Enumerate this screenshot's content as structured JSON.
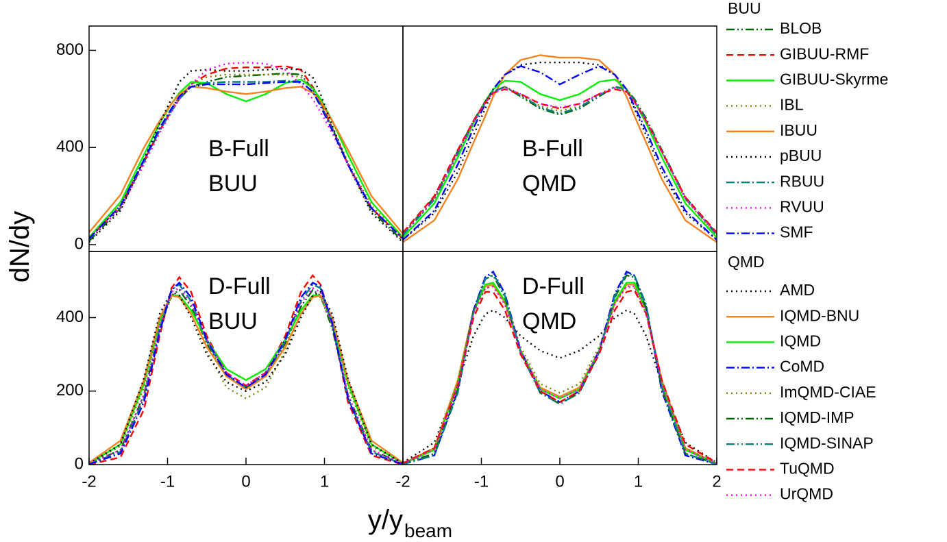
{
  "y_label": "dN/dy",
  "x_label": "y/y",
  "x_label_sub": "beam",
  "chart_data": [
    {
      "type": "line",
      "legend_title": "BUU",
      "label": [
        "B-Full",
        "BUU"
      ],
      "x": [
        -2,
        -1.6,
        -1.3,
        -1.1,
        -0.95,
        -0.85,
        -0.7,
        -0.5,
        -0.25,
        0,
        0.25,
        0.5,
        0.7,
        0.85,
        0.95,
        1.1,
        1.3,
        1.6,
        2
      ],
      "xlim": [
        -2,
        2
      ],
      "ylim": [
        -28,
        900
      ],
      "yticks": [
        0,
        400,
        800
      ],
      "series": [
        {
          "name": "BLOB",
          "color": "#006400",
          "dash": "dashdotdot",
          "values": [
            15,
            150,
            340,
            470,
            550,
            600,
            650,
            670,
            690,
            695,
            700,
            705,
            700,
            640,
            580,
            480,
            330,
            140,
            15
          ]
        },
        {
          "name": "GIBUU-RMF",
          "color": "#ff0000",
          "dash": "dashed",
          "values": [
            25,
            160,
            345,
            470,
            550,
            600,
            660,
            700,
            725,
            730,
            730,
            735,
            720,
            650,
            590,
            480,
            330,
            150,
            25
          ]
        },
        {
          "name": "GIBUU-Skyrme",
          "color": "#00ee00",
          "dash": "solid",
          "values": [
            30,
            175,
            370,
            500,
            580,
            625,
            670,
            665,
            620,
            590,
            620,
            665,
            680,
            645,
            600,
            510,
            370,
            175,
            30
          ]
        },
        {
          "name": "IBL",
          "color": "#808000",
          "dash": "dotted",
          "values": [
            30,
            165,
            350,
            480,
            560,
            610,
            660,
            690,
            700,
            700,
            700,
            700,
            690,
            640,
            580,
            480,
            340,
            160,
            30
          ]
        },
        {
          "name": "IBUU",
          "color": "#f58220",
          "dash": "solid",
          "values": [
            50,
            205,
            400,
            510,
            580,
            620,
            650,
            645,
            630,
            620,
            630,
            645,
            650,
            625,
            590,
            510,
            390,
            200,
            45
          ]
        },
        {
          "name": "pBUU",
          "color": "#000000",
          "dash": "dotted",
          "values": [
            10,
            140,
            350,
            500,
            600,
            670,
            715,
            720,
            715,
            715,
            720,
            725,
            720,
            690,
            620,
            490,
            330,
            130,
            10
          ]
        },
        {
          "name": "RBUU",
          "color": "#008080",
          "dash": "dashdot",
          "values": [
            25,
            160,
            345,
            470,
            550,
            600,
            650,
            665,
            670,
            670,
            670,
            675,
            670,
            630,
            575,
            475,
            330,
            150,
            25
          ]
        },
        {
          "name": "RVUU",
          "color": "#ff00ff",
          "dash": "dotted",
          "values": [
            25,
            150,
            330,
            460,
            545,
            600,
            660,
            720,
            745,
            750,
            745,
            720,
            660,
            600,
            545,
            460,
            330,
            150,
            25
          ]
        },
        {
          "name": "SMF",
          "color": "#0000ff",
          "dash": "dashdot",
          "values": [
            25,
            160,
            350,
            480,
            560,
            610,
            650,
            660,
            660,
            660,
            665,
            670,
            670,
            630,
            570,
            470,
            330,
            150,
            25
          ]
        }
      ]
    },
    {
      "type": "line",
      "legend_title": "QMD",
      "label": [
        "B-Full",
        "QMD"
      ],
      "x": [
        -2,
        -1.6,
        -1.3,
        -1.1,
        -0.95,
        -0.85,
        -0.7,
        -0.5,
        -0.25,
        0,
        0.25,
        0.5,
        0.7,
        0.85,
        0.95,
        1.1,
        1.3,
        1.6,
        2
      ],
      "xlim": [
        -2,
        2
      ],
      "ylim": [
        -28,
        900
      ],
      "series": [
        {
          "name": "AMD",
          "color": "#000000",
          "dash": "dotted",
          "values": [
            20,
            130,
            300,
            450,
            560,
            640,
            700,
            740,
            750,
            750,
            750,
            740,
            700,
            640,
            560,
            450,
            300,
            130,
            20
          ]
        },
        {
          "name": "IQMD-BNU",
          "color": "#f58220",
          "dash": "solid",
          "values": [
            10,
            100,
            270,
            420,
            530,
            610,
            700,
            760,
            780,
            770,
            770,
            760,
            700,
            610,
            530,
            420,
            270,
            100,
            10
          ]
        },
        {
          "name": "IQMD",
          "color": "#00ee00",
          "dash": "solid",
          "values": [
            30,
            170,
            360,
            500,
            590,
            640,
            675,
            670,
            620,
            595,
            620,
            670,
            680,
            640,
            590,
            500,
            360,
            170,
            30
          ]
        },
        {
          "name": "CoMD",
          "color": "#0000ff",
          "dash": "dashdot",
          "values": [
            20,
            140,
            330,
            480,
            580,
            640,
            700,
            735,
            710,
            660,
            700,
            735,
            700,
            640,
            570,
            470,
            320,
            140,
            20
          ]
        },
        {
          "name": "ImQMD-CIAE",
          "color": "#808000",
          "dash": "dotted",
          "values": [
            40,
            185,
            380,
            510,
            590,
            630,
            650,
            620,
            570,
            550,
            570,
            620,
            650,
            630,
            590,
            510,
            380,
            185,
            40
          ]
        },
        {
          "name": "IQMD-IMP",
          "color": "#006400",
          "dash": "dashdotdot",
          "values": [
            45,
            195,
            385,
            510,
            590,
            630,
            650,
            610,
            560,
            535,
            560,
            610,
            650,
            640,
            600,
            520,
            390,
            195,
            45
          ]
        },
        {
          "name": "IQMD-SINAP",
          "color": "#008080",
          "dash": "dashdotdot",
          "values": [
            40,
            185,
            375,
            505,
            585,
            630,
            650,
            615,
            565,
            540,
            565,
            615,
            650,
            640,
            595,
            515,
            385,
            190,
            40
          ]
        },
        {
          "name": "TuQMD",
          "color": "#ff0000",
          "dash": "dashed",
          "values": [
            50,
            200,
            390,
            510,
            585,
            625,
            640,
            620,
            580,
            560,
            580,
            620,
            640,
            630,
            590,
            510,
            385,
            195,
            50
          ]
        },
        {
          "name": "UrQMD",
          "color": "#ff00ff",
          "dash": "dotted",
          "values": [
            45,
            190,
            380,
            505,
            585,
            625,
            645,
            620,
            580,
            565,
            580,
            620,
            645,
            630,
            590,
            510,
            380,
            190,
            45
          ]
        }
      ]
    },
    {
      "type": "line",
      "label": [
        "D-Full",
        "BUU"
      ],
      "x": [
        -2,
        -1.6,
        -1.3,
        -1.1,
        -0.95,
        -0.85,
        -0.7,
        -0.5,
        -0.25,
        0,
        0.25,
        0.5,
        0.7,
        0.85,
        0.95,
        1.1,
        1.3,
        1.6,
        2
      ],
      "xlim": [
        -2,
        2
      ],
      "ylim": [
        0,
        580
      ],
      "xticks": [
        -2,
        -1,
        0,
        1
      ],
      "yticks": [
        0,
        200,
        400
      ],
      "series": [
        {
          "name": "BLOB",
          "color": "#006400",
          "dash": "dashdotdot",
          "values": [
            2,
            40,
            190,
            370,
            460,
            475,
            430,
            330,
            240,
            210,
            240,
            330,
            430,
            475,
            460,
            370,
            190,
            40,
            2
          ]
        },
        {
          "name": "GIBUU-RMF",
          "color": "#ff0000",
          "dash": "dashed",
          "values": [
            0,
            20,
            150,
            350,
            480,
            510,
            470,
            350,
            250,
            215,
            250,
            350,
            470,
            515,
            490,
            380,
            170,
            25,
            0
          ]
        },
        {
          "name": "GIBUU-Skyrme",
          "color": "#00ee00",
          "dash": "solid",
          "values": [
            3,
            55,
            220,
            390,
            460,
            460,
            420,
            340,
            260,
            230,
            260,
            340,
            420,
            460,
            460,
            390,
            220,
            55,
            3
          ]
        },
        {
          "name": "IBL",
          "color": "#808000",
          "dash": "dotted",
          "values": [
            3,
            50,
            210,
            380,
            455,
            460,
            410,
            310,
            210,
            180,
            210,
            310,
            410,
            460,
            455,
            380,
            210,
            50,
            3
          ]
        },
        {
          "name": "IBUU",
          "color": "#f58220",
          "dash": "solid",
          "values": [
            5,
            65,
            230,
            400,
            460,
            455,
            410,
            320,
            240,
            205,
            240,
            320,
            410,
            455,
            460,
            400,
            230,
            65,
            5
          ]
        },
        {
          "name": "pBUU",
          "color": "#000000",
          "dash": "dotted",
          "values": [
            3,
            55,
            235,
            410,
            470,
            460,
            400,
            300,
            225,
            200,
            225,
            300,
            400,
            460,
            470,
            410,
            235,
            55,
            3
          ]
        },
        {
          "name": "RBUU",
          "color": "#008080",
          "dash": "dashdot",
          "values": [
            1,
            35,
            180,
            370,
            475,
            490,
            445,
            335,
            245,
            210,
            245,
            335,
            445,
            490,
            480,
            380,
            180,
            35,
            1
          ]
        },
        {
          "name": "RVUU",
          "color": "#ff00ff",
          "dash": "dotted",
          "values": [
            2,
            40,
            190,
            375,
            470,
            480,
            440,
            340,
            250,
            215,
            250,
            340,
            440,
            480,
            470,
            380,
            190,
            40,
            2
          ]
        },
        {
          "name": "SMF",
          "color": "#0000ff",
          "dash": "dashdot",
          "values": [
            1,
            30,
            170,
            360,
            475,
            495,
            455,
            340,
            245,
            210,
            245,
            340,
            455,
            495,
            485,
            385,
            180,
            30,
            1
          ]
        }
      ]
    },
    {
      "type": "line",
      "label": [
        "D-Full",
        "QMD"
      ],
      "x": [
        -2,
        -1.6,
        -1.3,
        -1.1,
        -0.95,
        -0.85,
        -0.7,
        -0.5,
        -0.25,
        0,
        0.25,
        0.5,
        0.7,
        0.85,
        0.95,
        1.1,
        1.3,
        1.6,
        2
      ],
      "xlim": [
        -2,
        2
      ],
      "ylim": [
        0,
        580
      ],
      "xticks": [
        -2,
        -1,
        0,
        1,
        2
      ],
      "series": [
        {
          "name": "AMD",
          "color": "#000000",
          "dash": "dotted",
          "values": [
            5,
            60,
            220,
            350,
            410,
            420,
            400,
            350,
            310,
            290,
            310,
            350,
            400,
            420,
            410,
            350,
            220,
            60,
            5
          ]
        },
        {
          "name": "IQMD-BNU",
          "color": "#f58220",
          "dash": "solid",
          "values": [
            3,
            45,
            230,
            420,
            485,
            490,
            440,
            310,
            210,
            185,
            210,
            310,
            440,
            490,
            490,
            420,
            230,
            45,
            3
          ]
        },
        {
          "name": "IQMD",
          "color": "#00ee00",
          "dash": "solid",
          "values": [
            2,
            40,
            220,
            415,
            490,
            495,
            445,
            310,
            205,
            180,
            205,
            310,
            445,
            495,
            495,
            420,
            220,
            40,
            2
          ]
        },
        {
          "name": "CoMD",
          "color": "#0000ff",
          "dash": "dashdot",
          "values": [
            1,
            25,
            200,
            420,
            510,
            525,
            465,
            310,
            200,
            170,
            200,
            310,
            465,
            525,
            515,
            430,
            200,
            25,
            1
          ]
        },
        {
          "name": "ImQMD-CIAE",
          "color": "#808000",
          "dash": "dotted",
          "values": [
            3,
            45,
            225,
            415,
            480,
            485,
            440,
            320,
            220,
            195,
            220,
            320,
            440,
            485,
            480,
            410,
            225,
            45,
            3
          ]
        },
        {
          "name": "IQMD-IMP",
          "color": "#006400",
          "dash": "dashdotdot",
          "values": [
            2,
            30,
            205,
            420,
            505,
            515,
            455,
            305,
            195,
            165,
            195,
            305,
            455,
            515,
            510,
            425,
            205,
            30,
            2
          ]
        },
        {
          "name": "IQMD-SINAP",
          "color": "#008080",
          "dash": "dashdotdot",
          "values": [
            1,
            25,
            195,
            415,
            505,
            520,
            460,
            305,
            195,
            165,
            195,
            305,
            460,
            520,
            515,
            435,
            210,
            30,
            1
          ]
        },
        {
          "name": "TuQMD",
          "color": "#ff0000",
          "dash": "dashed",
          "values": [
            4,
            45,
            215,
            400,
            470,
            470,
            420,
            300,
            200,
            170,
            200,
            300,
            420,
            470,
            475,
            410,
            230,
            55,
            5
          ]
        },
        {
          "name": "UrQMD",
          "color": "#ff00ff",
          "dash": "dotted",
          "values": [
            3,
            40,
            215,
            410,
            480,
            485,
            435,
            310,
            205,
            180,
            205,
            310,
            435,
            485,
            485,
            415,
            220,
            40,
            3
          ]
        }
      ]
    }
  ]
}
